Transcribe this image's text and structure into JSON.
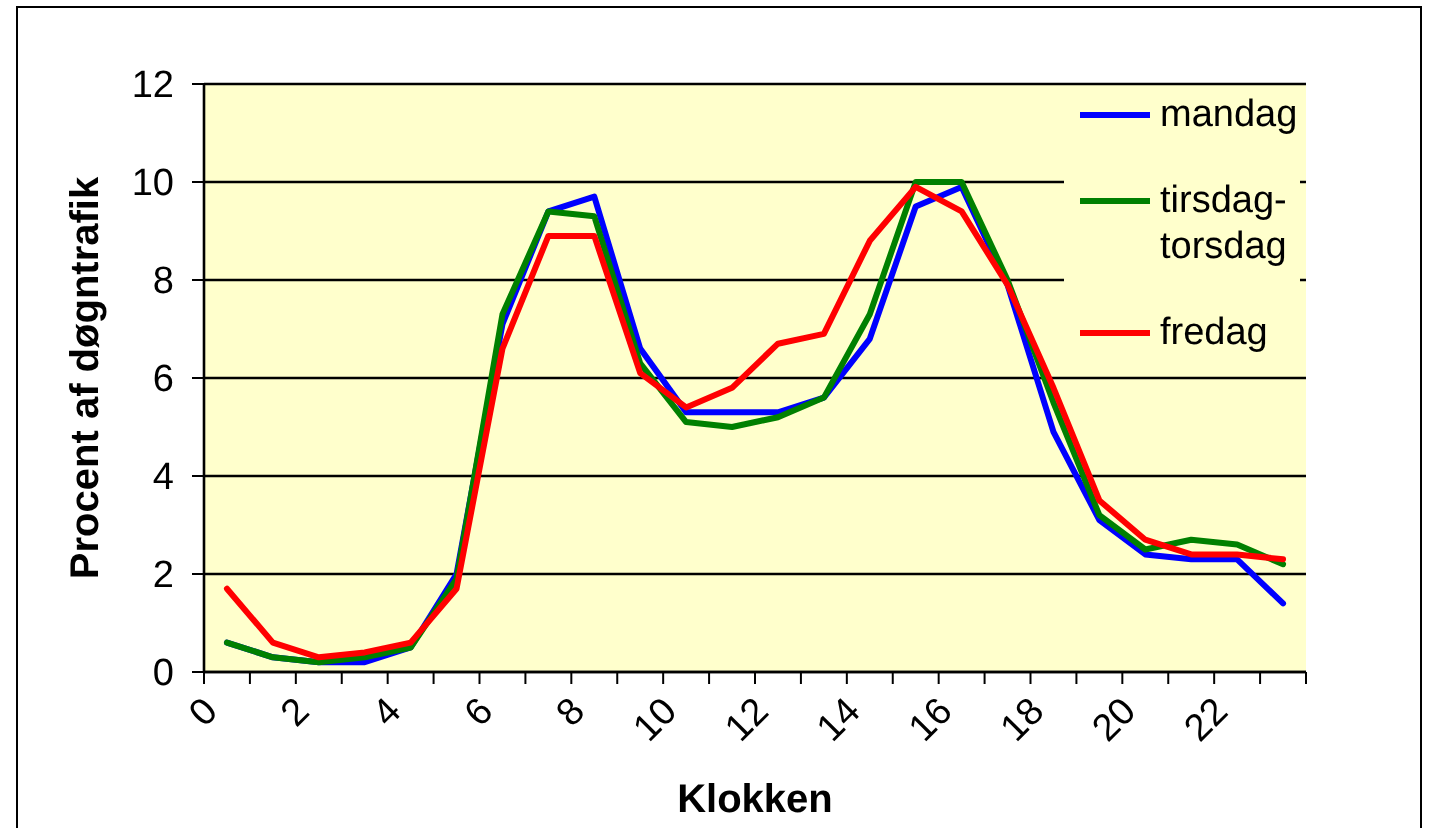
{
  "chart_data": {
    "type": "line",
    "xlabel": "Klokken",
    "ylabel": "Procent af døgntrafik",
    "x": [
      0.5,
      1.5,
      2.5,
      3.5,
      4.5,
      5.5,
      6.5,
      7.5,
      8.5,
      9.5,
      10.5,
      11.5,
      12.5,
      13.5,
      14.5,
      15.5,
      16.5,
      17.5,
      18.5,
      19.5,
      20.5,
      21.5,
      22.5,
      23.5
    ],
    "series": [
      {
        "name": "mandag",
        "color": "#0000ff",
        "values": [
          0.6,
          0.3,
          0.2,
          0.2,
          0.5,
          2.0,
          7.1,
          9.4,
          9.7,
          6.6,
          5.3,
          5.3,
          5.3,
          5.6,
          6.8,
          9.5,
          9.9,
          7.9,
          4.9,
          3.1,
          2.4,
          2.3,
          2.3,
          1.4
        ]
      },
      {
        "name": "tirsdag-torsdag",
        "color": "#008000",
        "values": [
          0.6,
          0.3,
          0.2,
          0.3,
          0.5,
          1.9,
          7.3,
          9.4,
          9.3,
          6.3,
          5.1,
          5.0,
          5.2,
          5.6,
          7.3,
          10.0,
          10.0,
          8.0,
          5.5,
          3.2,
          2.5,
          2.7,
          2.6,
          2.2
        ]
      },
      {
        "name": "fredag",
        "color": "#ff0000",
        "values": [
          1.7,
          0.6,
          0.3,
          0.4,
          0.6,
          1.7,
          6.6,
          8.9,
          8.9,
          6.1,
          5.4,
          5.8,
          6.7,
          6.9,
          8.8,
          9.9,
          9.4,
          7.9,
          5.8,
          3.5,
          2.7,
          2.4,
          2.4,
          2.3
        ]
      }
    ],
    "xlim": [
      0,
      24
    ],
    "xticks": [
      0,
      {
        "value": 1,
        "label": null
      },
      2,
      {
        "value": 3,
        "label": null
      },
      4,
      {
        "value": 5,
        "label": null
      },
      6,
      {
        "value": 7,
        "label": null
      },
      8,
      {
        "value": 9,
        "label": null
      },
      10,
      {
        "value": 11,
        "label": null
      },
      12,
      {
        "value": 13,
        "label": null
      },
      14,
      {
        "value": 15,
        "label": null
      },
      16,
      {
        "value": 17,
        "label": null
      },
      18,
      {
        "value": 19,
        "label": null
      },
      20,
      {
        "value": 21,
        "label": null
      },
      22,
      {
        "value": 23,
        "label": null
      },
      {
        "value": 24,
        "label": null
      }
    ],
    "ylim": [
      0,
      12
    ],
    "yticks": [
      0,
      2,
      4,
      6,
      8,
      10,
      12
    ],
    "grid": "y",
    "legend": "top right",
    "marker": "none",
    "line_style": "solid"
  }
}
